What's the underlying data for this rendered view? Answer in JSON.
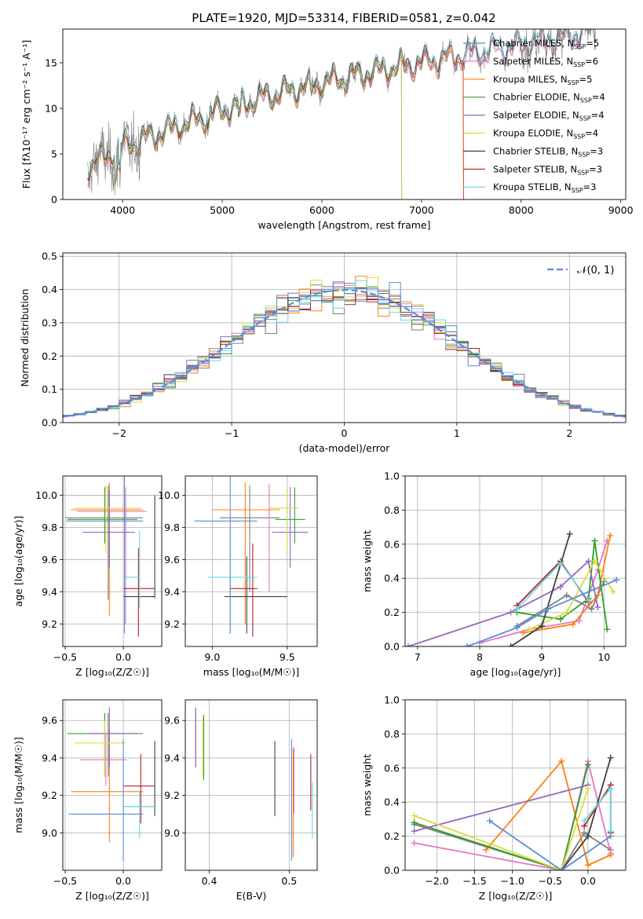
{
  "title": "PLATE=1920, MJD=53314, FIBERID=0581, z=0.042",
  "colors": {
    "chabrier_miles": "#7f7f7f",
    "salpeter_miles": "#e377c2",
    "kroupa_miles": "#ff7f0e",
    "chabrier_elodie": "#2ca02c",
    "salpeter_elodie": "#9467bd",
    "kroupa_elodie": "#dbdb3d",
    "chabrier_stelib": "#404040",
    "salpeter_stelib": "#b22222",
    "kroupa_stelib": "#66d9e8",
    "gaussian": "#5b8bd9"
  },
  "chart_data": [
    {
      "id": "spectrum",
      "type": "line",
      "xlabel": "wavelength [Angstrom, rest frame]",
      "ylabel": "Flux [fλ10⁻¹⁷ erg cm⁻² s⁻¹ A⁻¹]",
      "xlim": [
        3400,
        9050
      ],
      "ylim": [
        0,
        18.7
      ],
      "xticks": [
        4000,
        5000,
        6000,
        7000,
        8000,
        9000
      ],
      "yticks": [
        0,
        5,
        10,
        15
      ],
      "legend_position": "top-right",
      "observed_flux_color": "#7f7f7f",
      "trend": {
        "x": [
          3650,
          4000,
          4500,
          5000,
          5500,
          6000,
          6500,
          7000,
          7500,
          8000,
          8500,
          8750
        ],
        "y": [
          3.5,
          5.8,
          7.8,
          9.8,
          11.5,
          12.8,
          14.0,
          15.0,
          16.0,
          17.0,
          18.0,
          18.5
        ]
      },
      "series": [
        {
          "name": "Chabrier MILES, N_SSP=5",
          "key": "chabrier_miles",
          "cutoff": null
        },
        {
          "name": "Salpeter MILES, N_SSP=6",
          "key": "salpeter_miles",
          "cutoff": null
        },
        {
          "name": "Kroupa MILES, N_SSP=5",
          "key": "kroupa_miles",
          "cutoff": 7420
        },
        {
          "name": "Chabrier ELODIE, N_SSP=4",
          "key": "chabrier_elodie",
          "cutoff": 6800
        },
        {
          "name": "Salpeter ELODIE, N_SSP=4",
          "key": "salpeter_elodie",
          "cutoff": 6800
        },
        {
          "name": "Kroupa ELODIE, N_SSP=4",
          "key": "kroupa_elodie",
          "cutoff": 6800
        },
        {
          "name": "Chabrier STELIB, N_SSP=3",
          "key": "chabrier_stelib",
          "cutoff": null
        },
        {
          "name": "Salpeter STELIB, N_SSP=3",
          "key": "salpeter_stelib",
          "cutoff": 7420
        },
        {
          "name": "Kroupa STELIB, N_SSP=3",
          "key": "kroupa_stelib",
          "cutoff": null
        }
      ]
    },
    {
      "id": "residuals",
      "type": "histogram",
      "xlabel": "(data-model)/error",
      "ylabel": "Normed distribution",
      "xlim": [
        -2.5,
        2.5
      ],
      "ylim": [
        0,
        0.51
      ],
      "xticks": [
        -2,
        -1,
        0,
        1,
        2
      ],
      "yticks": [
        0.0,
        0.1,
        0.2,
        0.3,
        0.4,
        0.5
      ],
      "bin_width": 0.1,
      "legend_position": "top-right",
      "gaussian_label": "𝒩(0, 1)",
      "grid": true
    },
    {
      "id": "age_vs_z",
      "type": "errorbar",
      "xlabel": "Z [log₁₀(Z/Z☉)]",
      "ylabel": "age  [log₁₀(age/yr)]",
      "xlim": [
        -0.52,
        0.33
      ],
      "ylim": [
        9.06,
        10.12
      ],
      "xticks": [
        -0.5,
        0.0
      ],
      "yticks": [
        9.2,
        9.4,
        9.6,
        9.8,
        10.0
      ],
      "points": [
        {
          "key": "chabrier_miles",
          "x": -0.13,
          "xlo": -0.5,
          "xhi": 0.17,
          "y": 9.86,
          "ylo": 9.35,
          "yhi": 10.06
        },
        {
          "key": "salpeter_miles",
          "x": 0.02,
          "xlo": -0.4,
          "xhi": 0.2,
          "y": 9.9,
          "ylo": 9.2,
          "yhi": 10.05
        },
        {
          "key": "kroupa_miles",
          "x": -0.12,
          "xlo": -0.45,
          "xhi": 0.17,
          "y": 9.91,
          "ylo": 9.25,
          "yhi": 10.08
        },
        {
          "key": "chabrier_elodie",
          "x": -0.16,
          "xlo": -0.48,
          "xhi": 0.12,
          "y": 9.85,
          "ylo": 9.7,
          "yhi": 10.05
        },
        {
          "key": "salpeter_elodie",
          "x": -0.12,
          "xlo": -0.35,
          "xhi": 0.1,
          "y": 9.77,
          "ylo": 9.55,
          "yhi": 10.03
        },
        {
          "key": "kroupa_elodie",
          "x": -0.15,
          "xlo": -0.42,
          "xhi": 0.15,
          "y": 9.92,
          "ylo": 9.64,
          "yhi": 10.06
        },
        {
          "key": "chabrier_stelib",
          "x": 0.27,
          "xlo": 0.0,
          "xhi": 0.27,
          "y": 9.37,
          "ylo": 9.36,
          "yhi": 10.0
        },
        {
          "key": "salpeter_stelib",
          "x": 0.13,
          "xlo": 0.0,
          "xhi": 0.27,
          "y": 9.42,
          "ylo": 9.12,
          "yhi": 9.67
        },
        {
          "key": "kroupa_stelib",
          "x": 0.14,
          "xlo": 0.0,
          "xhi": 0.14,
          "y": 9.49,
          "ylo": 9.3,
          "yhi": 9.78
        },
        {
          "key": "gaussian",
          "x": 0.01,
          "xlo": -0.49,
          "xhi": 0.17,
          "y": 9.84,
          "ylo": 9.14,
          "yhi": 10.12
        }
      ]
    },
    {
      "id": "age_vs_mass",
      "type": "errorbar",
      "xlabel": "mass [log₁₀(M/M☉)]",
      "ylabel": "",
      "xlim": [
        8.82,
        9.7
      ],
      "ylim": [
        9.06,
        10.12
      ],
      "xticks": [
        9.0,
        9.5
      ],
      "yticks": [
        9.2,
        9.4,
        9.6,
        9.8,
        10.0
      ],
      "points": [
        {
          "key": "chabrier_miles",
          "x": 9.25,
          "xlo": 9.05,
          "xhi": 9.45,
          "y": 9.86,
          "ylo": 9.4,
          "yhi": 10.06
        },
        {
          "key": "salpeter_miles",
          "x": 9.38,
          "xlo": 9.15,
          "xhi": 9.45,
          "y": 9.91,
          "ylo": 9.4,
          "yhi": 10.07
        },
        {
          "key": "kroupa_miles",
          "x": 9.22,
          "xlo": 9.0,
          "xhi": 9.45,
          "y": 9.91,
          "ylo": 9.2,
          "yhi": 10.08
        },
        {
          "key": "chabrier_elodie",
          "x": 9.55,
          "xlo": 9.42,
          "xhi": 9.62,
          "y": 9.85,
          "ylo": 9.7,
          "yhi": 10.05
        },
        {
          "key": "salpeter_elodie",
          "x": 9.52,
          "xlo": 9.4,
          "xhi": 9.64,
          "y": 9.77,
          "ylo": 9.55,
          "yhi": 10.05
        },
        {
          "key": "kroupa_elodie",
          "x": 9.5,
          "xlo": 9.38,
          "xhi": 9.58,
          "y": 9.92,
          "ylo": 9.64,
          "yhi": 10.06
        },
        {
          "key": "chabrier_stelib",
          "x": 9.23,
          "xlo": 9.08,
          "xhi": 9.5,
          "y": 9.37,
          "ylo": 9.14,
          "yhi": 9.62
        },
        {
          "key": "salpeter_stelib",
          "x": 9.27,
          "xlo": 9.12,
          "xhi": 9.3,
          "y": 9.42,
          "ylo": 9.12,
          "yhi": 9.7
        },
        {
          "key": "kroupa_stelib",
          "x": 9.12,
          "xlo": 8.97,
          "xhi": 9.3,
          "y": 9.49,
          "ylo": 9.14,
          "yhi": 9.78
        },
        {
          "key": "gaussian",
          "x": 9.12,
          "xlo": 8.88,
          "xhi": 9.3,
          "y": 9.84,
          "ylo": 9.14,
          "yhi": 10.12
        }
      ]
    },
    {
      "id": "weight_vs_age",
      "type": "line",
      "xlabel": "age  [log₁₀(age/yr)]",
      "ylabel": "mass weight",
      "xlim": [
        6.8,
        10.35
      ],
      "ylim": [
        0,
        1.0
      ],
      "xticks": [
        7,
        8,
        9,
        10
      ],
      "yticks": [
        0.0,
        0.2,
        0.4,
        0.6,
        0.8,
        1.0
      ],
      "series": [
        {
          "key": "chabrier_miles",
          "x": [
            8.6,
            9.4,
            9.8,
            10.0
          ],
          "y": [
            0.12,
            0.3,
            0.22,
            0.38
          ]
        },
        {
          "key": "salpeter_miles",
          "x": [
            8.0,
            8.8,
            9.6,
            9.9,
            10.05
          ],
          "y": [
            0.02,
            0.1,
            0.15,
            0.45,
            0.62
          ]
        },
        {
          "key": "kroupa_miles",
          "x": [
            8.7,
            9.5,
            9.9,
            10.1
          ],
          "y": [
            0.08,
            0.13,
            0.3,
            0.65
          ]
        },
        {
          "key": "chabrier_elodie",
          "x": [
            8.6,
            9.3,
            9.75,
            9.85,
            10.05
          ],
          "y": [
            0.2,
            0.16,
            0.28,
            0.62,
            0.1
          ]
        },
        {
          "key": "salpeter_elodie",
          "x": [
            6.85,
            8.5,
            9.3,
            9.75,
            9.9
          ],
          "y": [
            0.0,
            0.2,
            0.35,
            0.5,
            0.23
          ]
        },
        {
          "key": "kroupa_elodie",
          "x": [
            8.8,
            9.4,
            9.85,
            10.15
          ],
          "y": [
            0.1,
            0.2,
            0.5,
            0.32
          ]
        },
        {
          "key": "chabrier_stelib",
          "x": [
            8.5,
            9.0,
            9.45
          ],
          "y": [
            0.0,
            0.12,
            0.66
          ]
        },
        {
          "key": "salpeter_stelib",
          "x": [
            8.6,
            9.3,
            9.75
          ],
          "y": [
            0.24,
            0.5,
            0.26
          ]
        },
        {
          "key": "kroupa_stelib",
          "x": [
            8.6,
            9.3,
            9.75
          ],
          "y": [
            0.22,
            0.49,
            0.27
          ]
        },
        {
          "key": "gaussian",
          "x": [
            7.8,
            8.6,
            9.1,
            10.2
          ],
          "y": [
            0.0,
            0.11,
            0.22,
            0.39
          ]
        }
      ]
    },
    {
      "id": "mass_vs_z",
      "type": "errorbar",
      "xlabel": "Z [log₁₀(Z/Z☉)]",
      "ylabel": "mass [log₁₀(M/M☉)]",
      "xlim": [
        -0.52,
        0.33
      ],
      "ylim": [
        8.8,
        9.71
      ],
      "xticks": [
        -0.5,
        0.0
      ],
      "yticks": [
        9.0,
        9.2,
        9.4,
        9.6
      ],
      "points": [
        {
          "key": "chabrier_miles",
          "x": -0.13,
          "xlo": -0.3,
          "xhi": 0.17,
          "y": 9.53,
          "ylo": 9.3,
          "yhi": 9.64
        },
        {
          "key": "salpeter_miles",
          "x": -0.15,
          "xlo": -0.37,
          "xhi": 0.03,
          "y": 9.39,
          "ylo": 9.25,
          "yhi": 9.53
        },
        {
          "key": "kroupa_miles",
          "x": -0.12,
          "xlo": -0.45,
          "xhi": 0.17,
          "y": 9.22,
          "ylo": 8.95,
          "yhi": 9.55
        },
        {
          "key": "chabrier_elodie",
          "x": -0.16,
          "xlo": -0.48,
          "xhi": 0.12,
          "y": 9.53,
          "ylo": 9.3,
          "yhi": 9.64
        },
        {
          "key": "salpeter_elodie",
          "x": -0.12,
          "xlo": -0.3,
          "xhi": 0.12,
          "y": 9.53,
          "ylo": 9.35,
          "yhi": 9.67
        },
        {
          "key": "kroupa_elodie",
          "x": -0.16,
          "xlo": -0.42,
          "xhi": 0.02,
          "y": 9.48,
          "ylo": 9.3,
          "yhi": 9.6
        },
        {
          "key": "chabrier_stelib",
          "x": 0.27,
          "xlo": 0.0,
          "xhi": 0.27,
          "y": 9.14,
          "ylo": 9.09,
          "yhi": 9.49
        },
        {
          "key": "salpeter_stelib",
          "x": 0.15,
          "xlo": 0.0,
          "xhi": 0.27,
          "y": 9.25,
          "ylo": 9.05,
          "yhi": 9.42
        },
        {
          "key": "kroupa_stelib",
          "x": 0.14,
          "xlo": 0.0,
          "xhi": 0.27,
          "y": 9.14,
          "ylo": 8.97,
          "yhi": 9.22
        },
        {
          "key": "gaussian",
          "x": 0.0,
          "xlo": -0.47,
          "xhi": 0.17,
          "y": 9.1,
          "ylo": 8.85,
          "yhi": 9.5
        }
      ]
    },
    {
      "id": "mass_vs_ebv",
      "type": "errorbar",
      "xlabel": "E(B-V)",
      "ylabel": "",
      "xlim": [
        0.37,
        0.535
      ],
      "ylim": [
        8.8,
        9.71
      ],
      "xticks": [
        0.4,
        0.5
      ],
      "yticks": [
        9.0,
        9.2,
        9.4,
        9.6
      ],
      "points": [
        {
          "key": "chabrier_miles",
          "x": 0.383,
          "y": 9.5,
          "ylo": 9.35,
          "yhi": 9.66
        },
        {
          "key": "salpeter_miles",
          "x": 0.506,
          "y": 9.3,
          "ylo": 9.1,
          "yhi": 9.46
        },
        {
          "key": "kroupa_miles",
          "x": 0.505,
          "y": 9.2,
          "ylo": 8.87,
          "yhi": 9.45
        },
        {
          "key": "chabrier_elodie",
          "x": 0.393,
          "y": 9.45,
          "ylo": 9.28,
          "yhi": 9.63
        },
        {
          "key": "salpeter_elodie",
          "x": 0.383,
          "y": 9.5,
          "ylo": 9.35,
          "yhi": 9.67
        },
        {
          "key": "kroupa_elodie",
          "x": 0.392,
          "y": 9.45,
          "ylo": 9.3,
          "yhi": 9.62
        },
        {
          "key": "chabrier_stelib",
          "x": 0.482,
          "y": 9.29,
          "ylo": 9.09,
          "yhi": 9.49
        },
        {
          "key": "salpeter_stelib",
          "x": 0.527,
          "y": 9.27,
          "ylo": 9.12,
          "yhi": 9.42
        },
        {
          "key": "kroupa_stelib",
          "x": 0.529,
          "y": 9.12,
          "ylo": 8.97,
          "yhi": 9.27
        },
        {
          "key": "gaussian",
          "x": 0.503,
          "y": 9.1,
          "ylo": 8.85,
          "yhi": 9.5
        }
      ]
    },
    {
      "id": "weight_vs_z",
      "type": "line",
      "xlabel": "Z [log₁₀(Z/Z☉)]",
      "ylabel": "mass weight",
      "xlim": [
        -2.42,
        0.5
      ],
      "ylim": [
        0,
        1.0
      ],
      "xticks": [
        -2.0,
        -1.5,
        -1.0,
        -0.5,
        0.0
      ],
      "yticks": [
        0.0,
        0.2,
        0.4,
        0.6,
        0.8,
        1.0
      ],
      "series": [
        {
          "key": "chabrier_miles",
          "x": [
            -2.3,
            -0.35,
            -0.05,
            0.3
          ],
          "y": [
            0.27,
            0.0,
            0.22,
            0.12
          ]
        },
        {
          "key": "salpeter_miles",
          "x": [
            -2.3,
            -0.35,
            0.0,
            0.3
          ],
          "y": [
            0.16,
            0.0,
            0.64,
            0.1
          ]
        },
        {
          "key": "kroupa_miles",
          "x": [
            -1.35,
            -0.35,
            0.0,
            0.3
          ],
          "y": [
            0.12,
            0.64,
            0.03,
            0.09
          ]
        },
        {
          "key": "chabrier_elodie",
          "x": [
            -2.3,
            -0.35,
            0.0
          ],
          "y": [
            0.28,
            0.0,
            0.62
          ]
        },
        {
          "key": "salpeter_elodie",
          "x": [
            -2.3,
            0.0
          ],
          "y": [
            0.23,
            0.5
          ]
        },
        {
          "key": "kroupa_elodie",
          "x": [
            -2.3,
            -0.35,
            0.0
          ],
          "y": [
            0.32,
            0.0,
            0.48
          ]
        },
        {
          "key": "chabrier_stelib",
          "x": [
            -0.35,
            0.0,
            0.3
          ],
          "y": [
            0.0,
            0.2,
            0.66
          ]
        },
        {
          "key": "salpeter_stelib",
          "x": [
            -0.05,
            0.3,
            0.3
          ],
          "y": [
            0.26,
            0.5,
            0.22
          ]
        },
        {
          "key": "kroupa_stelib",
          "x": [
            -0.05,
            0.3,
            0.3
          ],
          "y": [
            0.29,
            0.48,
            0.23
          ]
        },
        {
          "key": "gaussian",
          "x": [
            -1.3,
            -0.35,
            0.3
          ],
          "y": [
            0.29,
            0.0,
            0.2
          ]
        }
      ]
    }
  ]
}
